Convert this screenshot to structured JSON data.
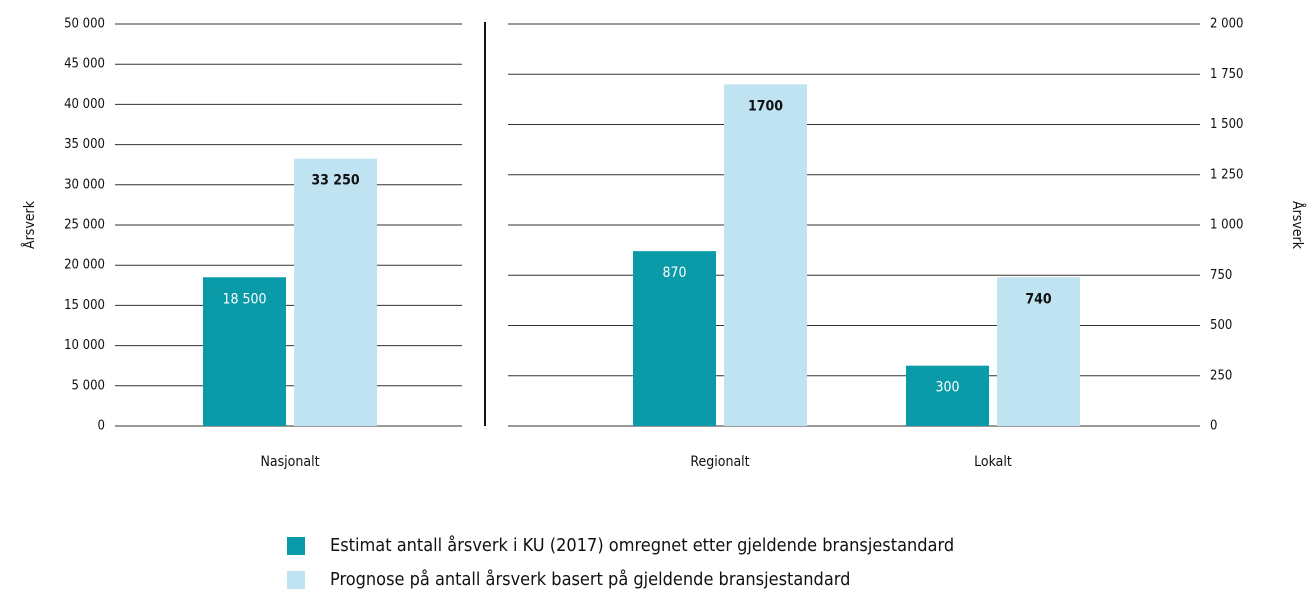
{
  "chart_data": [
    {
      "type": "bar",
      "ylabel": "Årsverk",
      "categories": [
        "Nasjonalt"
      ],
      "series": [
        {
          "name": "Estimat antall årsverk i KU (2017) omregnet etter gjeldende bransjestandard",
          "color": "#0a9aa8",
          "values": [
            18500
          ],
          "value_labels": [
            "18 500"
          ]
        },
        {
          "name": "Prognose på antall årsverk basert på gjeldende bransjestandard",
          "color": "#bfe3f0",
          "values": [
            33250
          ],
          "value_labels": [
            "33 250"
          ]
        }
      ],
      "ylim": [
        0,
        50000
      ],
      "yticks": [
        0,
        {
          "value": 5000,
          "label": "5 000"
        },
        {
          "value": 10000,
          "label": "10 000"
        },
        {
          "value": 15000,
          "label": "15 000"
        },
        {
          "value": 20000,
          "label": "20 000"
        },
        {
          "value": 25000,
          "label": "25 000"
        },
        {
          "value": 30000,
          "label": "30 000"
        },
        {
          "value": 35000,
          "label": "35 000"
        },
        {
          "value": 40000,
          "label": "40 000"
        },
        {
          "value": 45000,
          "label": "45 000"
        },
        {
          "value": 50000,
          "label": "50 000"
        }
      ],
      "grid": true,
      "yaxis_side": "left"
    },
    {
      "type": "bar",
      "ylabel": "Årsverk",
      "categories": [
        "Regionalt",
        "Lokalt"
      ],
      "series": [
        {
          "color": "#0a9aa8",
          "values": [
            870,
            300
          ]
        },
        {
          "color": "#bfe3f0",
          "values": [
            1700,
            740
          ]
        }
      ],
      "ylim": [
        0,
        2000
      ],
      "yticks": [
        0,
        250,
        500,
        750,
        {
          "value": 1000,
          "label": "1 000"
        },
        {
          "value": 1250,
          "label": "1 250"
        },
        {
          "value": 1500,
          "label": "1 500"
        },
        {
          "value": 1750,
          "label": "1 750"
        },
        {
          "value": 2000,
          "label": "2 000"
        }
      ],
      "grid": true,
      "yaxis_side": "right"
    }
  ]
}
